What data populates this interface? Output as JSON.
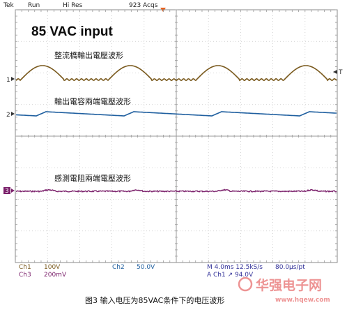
{
  "scope_header": {
    "brand": "Tek",
    "run_state": "Run",
    "resolution": "Hi Res",
    "acquisitions": "923 Acqs"
  },
  "screen": {
    "big_title": "85 VAC input",
    "trace1_label": "整流橋輸出電壓波形",
    "trace2_label": "輸出電容兩端電壓波形",
    "trace3_label": "感測電阻兩端電壓波形",
    "ch1_marker": "1",
    "ch2_marker": "2",
    "ch3_marker": "3"
  },
  "readout": {
    "ch1_name": "Ch1",
    "ch1_scale": "100V",
    "ch3_name": "Ch3",
    "ch3_scale": "200mV",
    "ch2_name": "Ch2",
    "ch2_scale": "50.0V",
    "timebase": "M 4.0ms 12.5kS/s",
    "sample_interval": "80.0μs/pt",
    "trigger": "A  Ch1  ↗  94.0V"
  },
  "caption": "图3 输入电压为85VAC条件下的电压波形",
  "watermark": {
    "brand": "华强电子网",
    "url": "www.hqew.com"
  },
  "colors": {
    "ch1": "#7a5a1e",
    "ch2": "#1f5f9f",
    "ch3": "#7a1f6a",
    "trigger_marker": "#e8601c",
    "readout_text": "#333399",
    "watermark": "#e03c3c"
  }
}
